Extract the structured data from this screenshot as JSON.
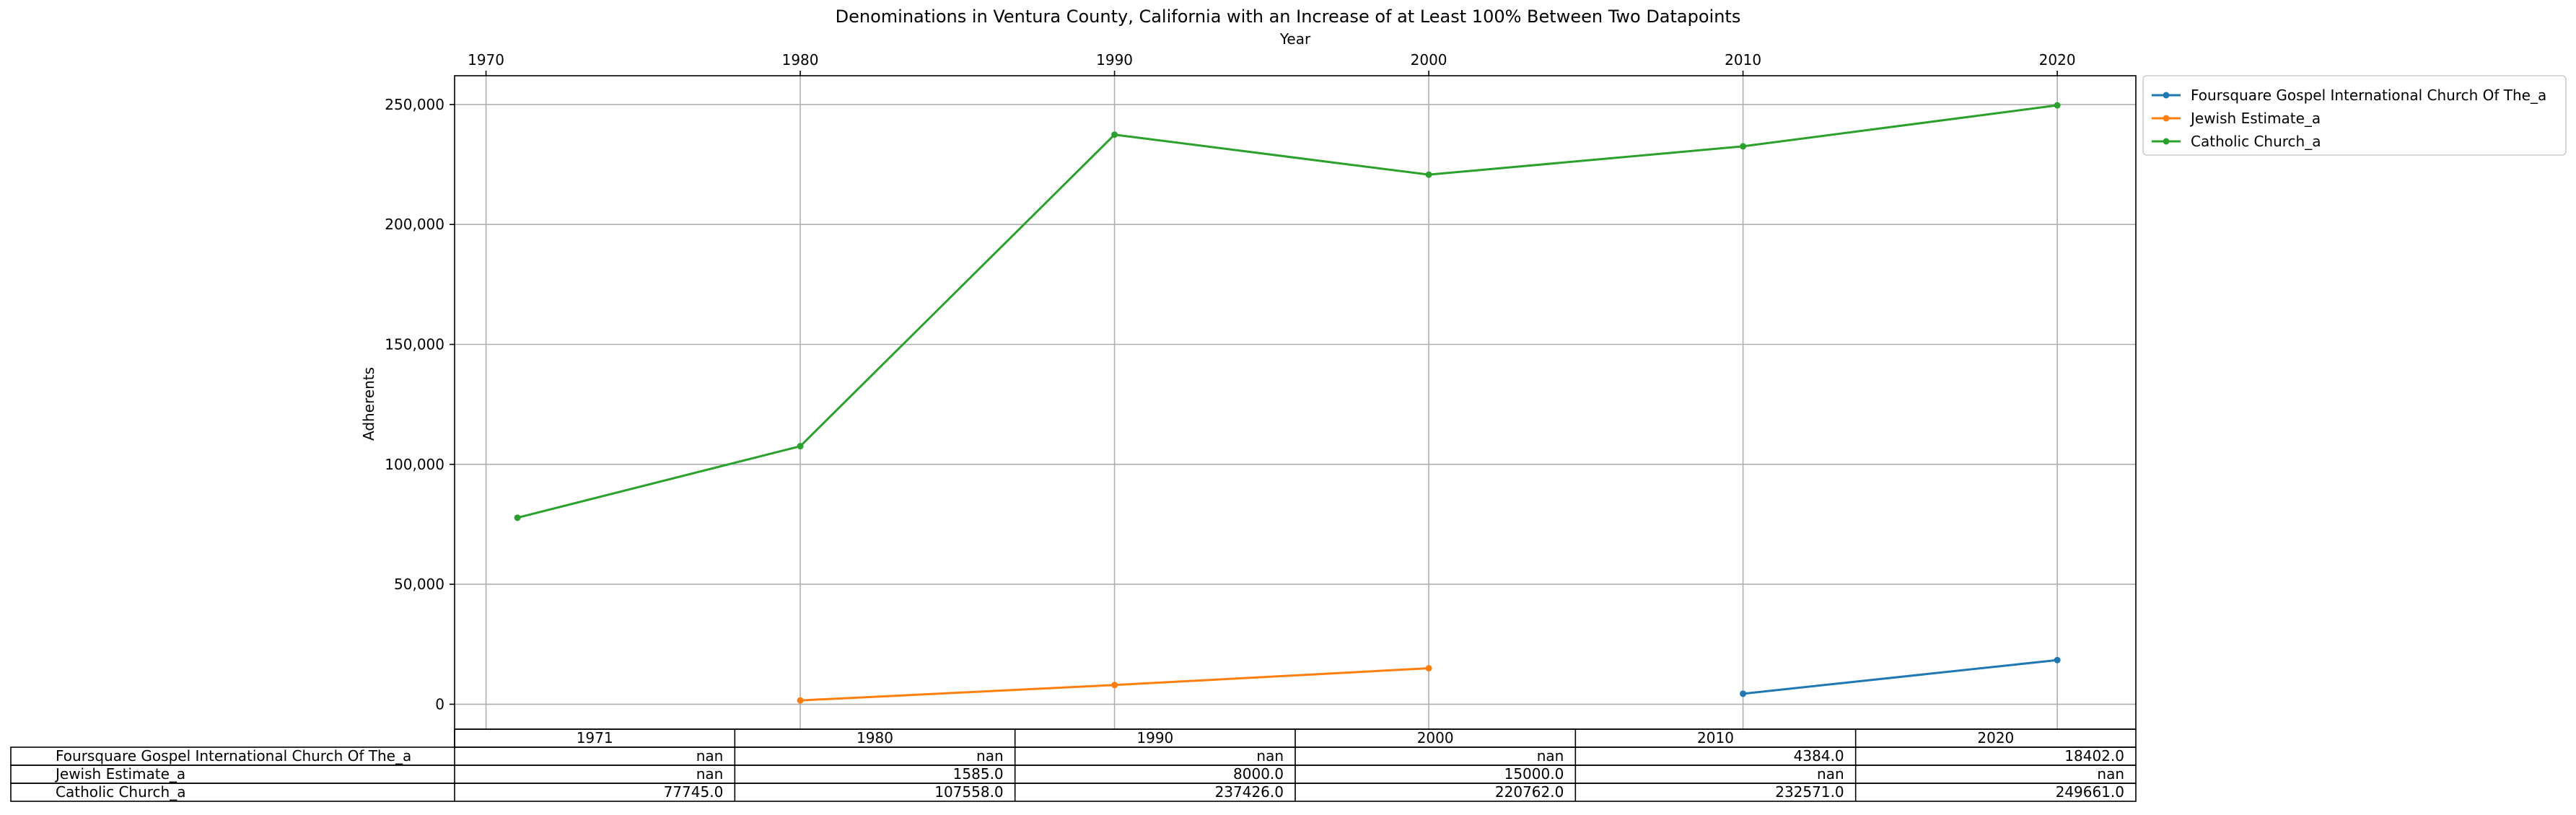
{
  "chart_data": {
    "type": "line",
    "title": "Denominations in Ventura County, California with an Increase of at Least 100% Between Two Datapoints",
    "xlabel": "Year",
    "ylabel": "Adherents",
    "x": [
      1971,
      1980,
      1990,
      2000,
      2010,
      2020
    ],
    "x_ticks": [
      1970,
      1980,
      1990,
      2000,
      2010,
      2020
    ],
    "y_ticks": [
      0,
      50000,
      100000,
      150000,
      200000,
      250000
    ],
    "y_tick_labels": [
      "0",
      "50,000",
      "100,000",
      "150,000",
      "200,000",
      "250,000"
    ],
    "xlim": [
      1969,
      2022.5
    ],
    "ylim": [
      -10400,
      262000
    ],
    "x_axis_position": "top",
    "grid": true,
    "legend_position": "outside-top-right",
    "series": [
      {
        "name": "Foursquare Gospel International Church Of The_a",
        "color": "#1f77b4",
        "values": [
          null,
          null,
          null,
          null,
          4384.0,
          18402.0
        ]
      },
      {
        "name": "Jewish Estimate_a",
        "color": "#ff7f0e",
        "values": [
          null,
          1585.0,
          8000.0,
          15000.0,
          null,
          null
        ]
      },
      {
        "name": "Catholic Church_a",
        "color": "#2ca02c",
        "values": [
          77745.0,
          107558.0,
          237426.0,
          220762.0,
          232571.0,
          249661.0
        ]
      }
    ],
    "table": {
      "columns": [
        "1971",
        "1980",
        "1990",
        "2000",
        "2010",
        "2020"
      ],
      "rows": [
        {
          "label": "Foursquare Gospel International Church Of The_a",
          "cells": [
            "nan",
            "nan",
            "nan",
            "nan",
            "4384.0",
            "18402.0"
          ]
        },
        {
          "label": "Jewish Estimate_a",
          "cells": [
            "nan",
            "1585.0",
            "8000.0",
            "15000.0",
            "nan",
            "nan"
          ]
        },
        {
          "label": "Catholic Church_a",
          "cells": [
            "77745.0",
            "107558.0",
            "237426.0",
            "220762.0",
            "232571.0",
            "249661.0"
          ]
        }
      ]
    }
  }
}
